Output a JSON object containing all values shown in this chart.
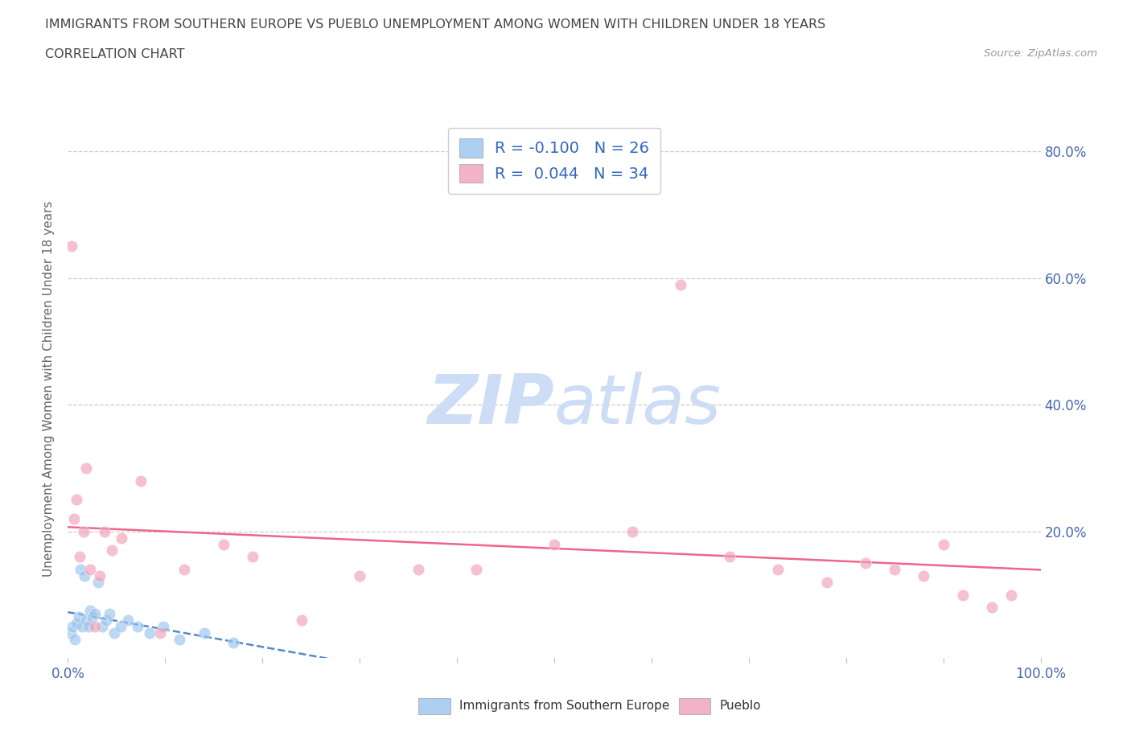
{
  "title_line1": "IMMIGRANTS FROM SOUTHERN EUROPE VS PUEBLO UNEMPLOYMENT AMONG WOMEN WITH CHILDREN UNDER 18 YEARS",
  "title_line2": "CORRELATION CHART",
  "source_text": "Source: ZipAtlas.com",
  "ylabel": "Unemployment Among Women with Children Under 18 years",
  "xlim": [
    0.0,
    1.0
  ],
  "ylim": [
    0.0,
    0.85
  ],
  "xtick_positions": [
    0.0,
    0.1,
    0.2,
    0.3,
    0.4,
    0.5,
    0.6,
    0.7,
    0.8,
    0.9,
    1.0
  ],
  "xtick_labels_show": {
    "0.0": "0.0%",
    "1.0": "100.0%"
  },
  "ytick_positions": [
    0.2,
    0.4,
    0.6,
    0.8
  ],
  "ytick_labels": [
    "20.0%",
    "40.0%",
    "60.0%",
    "80.0%"
  ],
  "blue_x": [
    0.003,
    0.005,
    0.007,
    0.009,
    0.011,
    0.013,
    0.015,
    0.017,
    0.019,
    0.021,
    0.023,
    0.025,
    0.028,
    0.031,
    0.035,
    0.039,
    0.043,
    0.048,
    0.054,
    0.062,
    0.072,
    0.084,
    0.098,
    0.115,
    0.14,
    0.17
  ],
  "blue_y": [
    0.04,
    0.05,
    0.03,
    0.055,
    0.065,
    0.14,
    0.05,
    0.13,
    0.06,
    0.05,
    0.075,
    0.065,
    0.07,
    0.12,
    0.05,
    0.06,
    0.07,
    0.04,
    0.05,
    0.06,
    0.05,
    0.04,
    0.05,
    0.03,
    0.04,
    0.025
  ],
  "pink_x": [
    0.004,
    0.006,
    0.009,
    0.012,
    0.016,
    0.019,
    0.023,
    0.028,
    0.033,
    0.038,
    0.045,
    0.055,
    0.075,
    0.095,
    0.12,
    0.16,
    0.19,
    0.24,
    0.3,
    0.36,
    0.42,
    0.5,
    0.58,
    0.63,
    0.68,
    0.73,
    0.78,
    0.82,
    0.85,
    0.88,
    0.9,
    0.92,
    0.95,
    0.97
  ],
  "pink_y": [
    0.65,
    0.22,
    0.25,
    0.16,
    0.2,
    0.3,
    0.14,
    0.05,
    0.13,
    0.2,
    0.17,
    0.19,
    0.28,
    0.04,
    0.14,
    0.18,
    0.16,
    0.06,
    0.13,
    0.14,
    0.14,
    0.18,
    0.2,
    0.59,
    0.16,
    0.14,
    0.12,
    0.15,
    0.14,
    0.13,
    0.18,
    0.1,
    0.08,
    0.1
  ],
  "blue_R": -0.1,
  "blue_N": 26,
  "pink_R": 0.044,
  "pink_N": 34,
  "blue_scatter_color": "#99c4ee",
  "blue_trend_color": "#5588cc",
  "pink_scatter_color": "#f0a0b8",
  "pink_trend_color": "#ee6688",
  "legend_label_color": "#3366bb",
  "watermark_color": "#ccddf5",
  "bg_color": "#ffffff",
  "title_color": "#444444",
  "axis_label_color": "#666666",
  "tick_color": "#4466aa",
  "grid_color": "#cccccc",
  "bottom_label_blue": "Immigrants from Southern Europe",
  "bottom_label_pink": "Pueblo"
}
